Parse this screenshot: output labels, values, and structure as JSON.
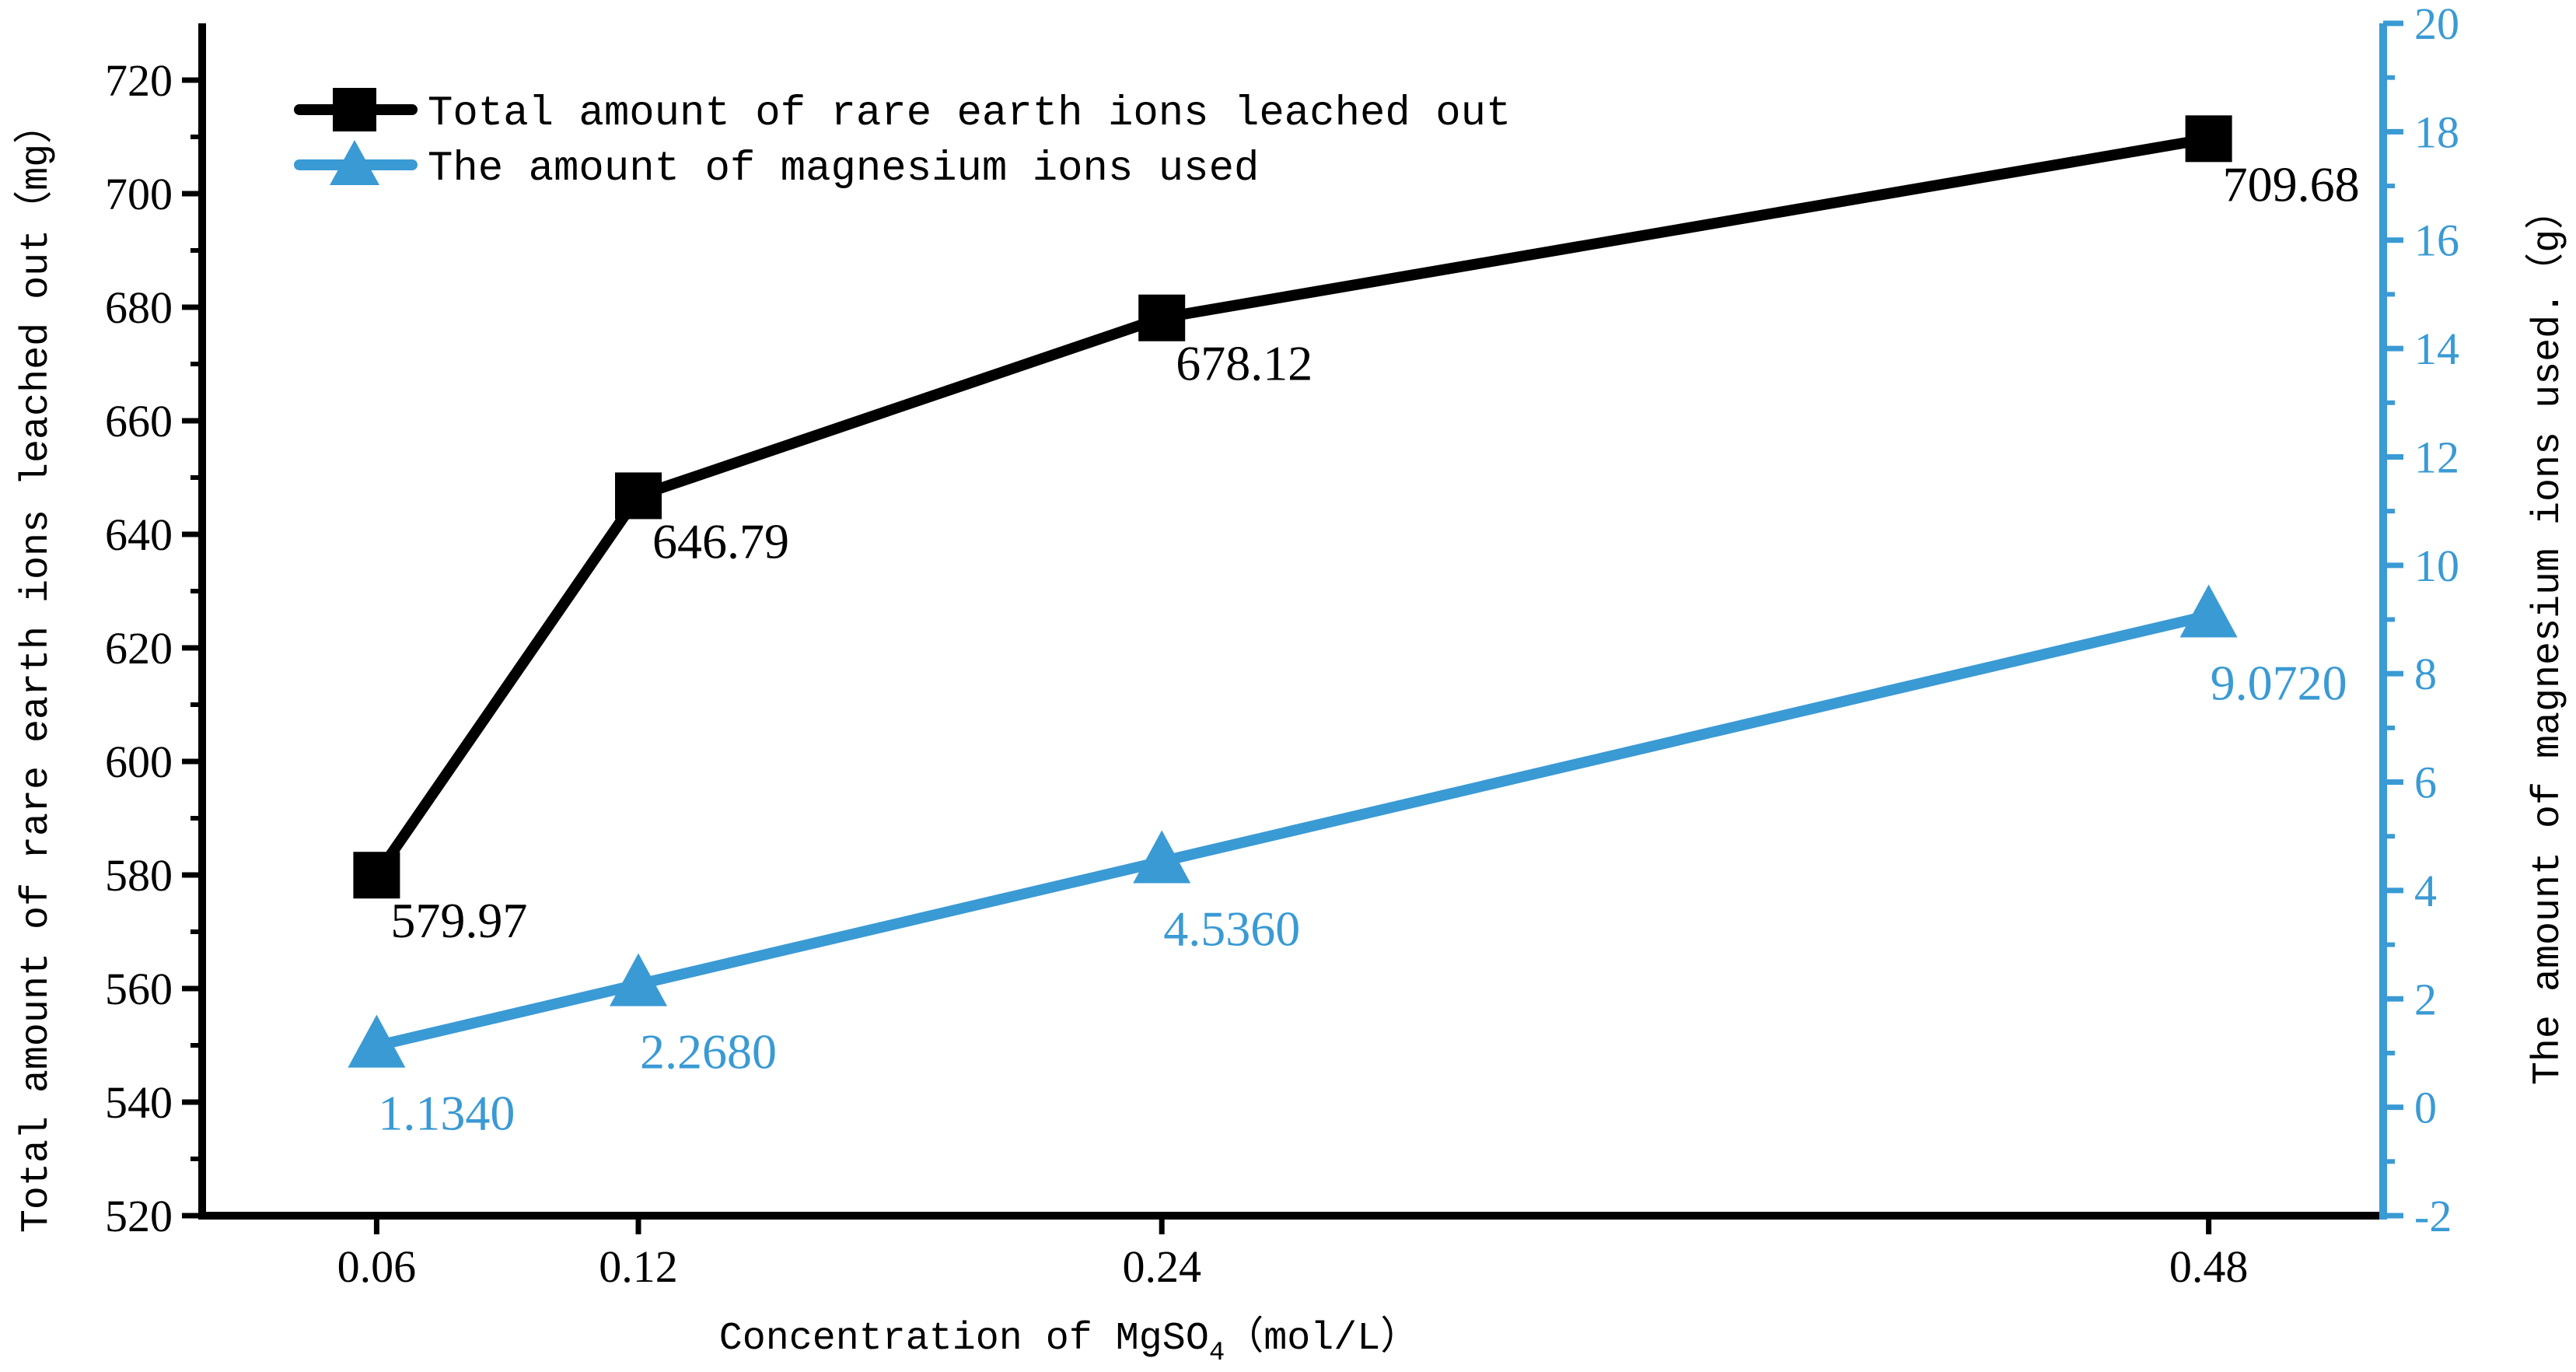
{
  "chart_data": {
    "type": "line",
    "xlabel": "Concentration of MgSO",
    "xlabel_sub": "4",
    "xlabel_unit": "（mol/L）",
    "ylabel_left": "Total amount of rare earth ions leached out（mg）",
    "ylabel_right": "The amount of magnesium ions used.（g）",
    "categories": [
      "0.06",
      "0.12",
      "0.24",
      "0.48"
    ],
    "x": [
      0.06,
      0.12,
      0.24,
      0.48
    ],
    "xlim": [
      0.02,
      0.52
    ],
    "ylim_left": [
      520,
      730
    ],
    "ylim_right": [
      -2,
      20
    ],
    "yticks_left": [
      520,
      540,
      560,
      580,
      600,
      620,
      640,
      660,
      680,
      700,
      720
    ],
    "yticks_right": [
      -2,
      0,
      2,
      4,
      6,
      8,
      10,
      12,
      14,
      16,
      18,
      20
    ],
    "legend_position": "top-left",
    "series": [
      {
        "name": "Total amount of rare earth ions leached out",
        "axis": "left",
        "marker": "square",
        "color": "#000000",
        "values": [
          579.97,
          646.79,
          678.12,
          709.68
        ],
        "labels": [
          "579.97",
          "646.79",
          "678.12",
          "709.68"
        ]
      },
      {
        "name": "The amount of magnesium ions used",
        "axis": "right",
        "marker": "triangle",
        "color": "#3a9ad4",
        "values": [
          1.134,
          2.268,
          4.536,
          9.072
        ],
        "labels": [
          "1.1340",
          "2.2680",
          "4.5360",
          "9.0720"
        ]
      }
    ]
  }
}
